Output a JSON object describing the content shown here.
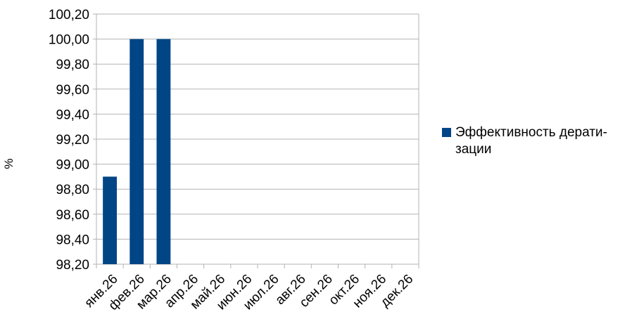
{
  "chart_data": {
    "type": "bar",
    "categories": [
      "янв.26",
      "фев.26",
      "мар.26",
      "апр.26",
      "май.26",
      "июн.26",
      "июл.26",
      "авг.26",
      "сен.26",
      "окт.26",
      "ноя.26",
      "дек.26"
    ],
    "series": [
      {
        "name": "Эффективность дерати-зации",
        "values": [
          98.9,
          100.0,
          100.0,
          null,
          null,
          null,
          null,
          null,
          null,
          null,
          null,
          null
        ],
        "color": "#004586"
      }
    ],
    "ylabel": "%",
    "ylim": [
      98.2,
      100.2
    ],
    "yticks": [
      "98,20",
      "98,40",
      "98,60",
      "98,80",
      "99,00",
      "99,20",
      "99,40",
      "99,60",
      "99,80",
      "100,00",
      "100,20"
    ],
    "grid": true,
    "legend": "right"
  },
  "legend": {
    "label_line1": "Эффективность дерати-",
    "label_line2": "зации"
  }
}
